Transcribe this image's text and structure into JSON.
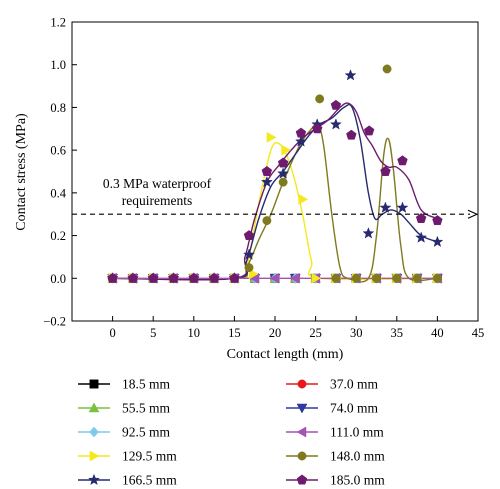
{
  "chart_data": {
    "type": "line",
    "title": "",
    "xlabel": "Contact length (mm)",
    "ylabel": "Contact stress (MPa)",
    "xlim": [
      -5,
      45
    ],
    "ylim": [
      -0.2,
      1.2
    ],
    "xticks": [
      "0",
      "5",
      "10",
      "15",
      "20",
      "25",
      "30",
      "35",
      "40",
      "45"
    ],
    "yticks": [
      "−0.2",
      "0.0",
      "0.2",
      "0.4",
      "0.6",
      "0.8",
      "1.0",
      "1.2"
    ],
    "grid": false,
    "legend_position": "bottom",
    "reference_line": {
      "y": 0.3,
      "label_line1": "0.3 MPa waterproof",
      "label_line2": "requirements",
      "color": "#000000"
    },
    "series": [
      {
        "name": "18.5 mm",
        "color": "#000000",
        "marker": "square",
        "points": [
          [
            0,
            0
          ],
          [
            2.5,
            0
          ],
          [
            5,
            0
          ],
          [
            7.5,
            0
          ],
          [
            10,
            0
          ],
          [
            12.5,
            0
          ],
          [
            15,
            0
          ],
          [
            17.5,
            0
          ],
          [
            20,
            0
          ],
          [
            22.5,
            0
          ],
          [
            25,
            0
          ],
          [
            27.5,
            0
          ],
          [
            30,
            0
          ],
          [
            32.5,
            0
          ],
          [
            35,
            0
          ],
          [
            37.5,
            0
          ],
          [
            40,
            0
          ]
        ]
      },
      {
        "name": "37.0 mm",
        "color": "#e8191c",
        "marker": "circle",
        "points": [
          [
            0,
            0
          ],
          [
            2.5,
            0
          ],
          [
            5,
            0
          ],
          [
            7.5,
            0
          ],
          [
            10,
            0
          ],
          [
            12.5,
            0
          ],
          [
            15,
            0
          ],
          [
            17.5,
            0
          ],
          [
            20,
            0
          ],
          [
            22.5,
            0
          ],
          [
            25,
            0
          ],
          [
            27.5,
            0
          ],
          [
            30,
            0
          ],
          [
            32.5,
            0
          ],
          [
            35,
            0
          ],
          [
            37.5,
            0
          ],
          [
            40,
            0
          ]
        ]
      },
      {
        "name": "55.5 mm",
        "color": "#7ac142",
        "marker": "triangle-up",
        "points": [
          [
            0,
            0
          ],
          [
            2.5,
            0
          ],
          [
            5,
            0
          ],
          [
            7.5,
            0
          ],
          [
            10,
            0
          ],
          [
            12.5,
            0
          ],
          [
            15,
            0
          ],
          [
            17.5,
            0
          ],
          [
            20,
            0
          ],
          [
            22.5,
            0
          ],
          [
            25,
            0
          ],
          [
            27.5,
            0
          ],
          [
            30,
            0
          ],
          [
            32.5,
            0
          ],
          [
            35,
            0
          ],
          [
            37.5,
            0
          ],
          [
            40,
            0
          ]
        ]
      },
      {
        "name": "74.0 mm",
        "color": "#2e3a9e",
        "marker": "triangle-down",
        "points": [
          [
            0,
            0
          ],
          [
            2.5,
            0
          ],
          [
            5,
            0
          ],
          [
            7.5,
            0
          ],
          [
            10,
            0
          ],
          [
            12.5,
            0
          ],
          [
            15,
            0
          ],
          [
            17.5,
            0
          ],
          [
            20,
            0
          ],
          [
            22.5,
            0
          ],
          [
            25,
            0
          ],
          [
            27.5,
            0
          ],
          [
            30,
            0
          ],
          [
            32.5,
            0
          ],
          [
            35,
            0
          ],
          [
            37.5,
            0
          ],
          [
            40,
            0
          ]
        ]
      },
      {
        "name": "92.5 mm",
        "color": "#7fc8ee",
        "marker": "diamond",
        "points": [
          [
            0,
            0
          ],
          [
            2.5,
            0
          ],
          [
            5,
            0
          ],
          [
            7.5,
            0
          ],
          [
            10,
            0
          ],
          [
            12.5,
            0
          ],
          [
            15,
            0
          ],
          [
            17.5,
            0
          ],
          [
            20,
            0
          ],
          [
            22.5,
            0
          ],
          [
            25,
            0
          ],
          [
            27.5,
            0
          ],
          [
            30,
            0
          ],
          [
            32.5,
            0
          ],
          [
            35,
            0
          ],
          [
            37.5,
            0
          ],
          [
            40,
            0
          ]
        ]
      },
      {
        "name": "111.0 mm",
        "color": "#a453b5",
        "marker": "triangle-left",
        "points": [
          [
            0,
            0
          ],
          [
            2.5,
            0
          ],
          [
            5,
            0
          ],
          [
            7.5,
            0
          ],
          [
            10,
            0
          ],
          [
            12.5,
            0
          ],
          [
            15,
            0
          ],
          [
            17.5,
            0
          ],
          [
            20,
            0
          ],
          [
            22.5,
            0
          ],
          [
            25,
            0
          ],
          [
            27.5,
            0
          ],
          [
            30,
            0
          ],
          [
            32.5,
            0
          ],
          [
            35,
            0
          ],
          [
            37.5,
            0
          ],
          [
            40,
            0
          ]
        ]
      },
      {
        "name": "129.5 mm",
        "color": "#f5e81c",
        "marker": "triangle-right",
        "points": [
          [
            0,
            0
          ],
          [
            2.5,
            0
          ],
          [
            5,
            0
          ],
          [
            7.5,
            0
          ],
          [
            10,
            0
          ],
          [
            12.5,
            0
          ],
          [
            15,
            0
          ],
          [
            17.3,
            0.02
          ],
          [
            19.5,
            0.66
          ],
          [
            21.3,
            0.6
          ],
          [
            23.4,
            0.37
          ],
          [
            25,
            0
          ],
          [
            27.5,
            0
          ],
          [
            30,
            0
          ],
          [
            32.5,
            0
          ],
          [
            35,
            0
          ],
          [
            37.5,
            0
          ],
          [
            40,
            0
          ]
        ]
      },
      {
        "name": "148.0 mm",
        "color": "#7f7a1d",
        "marker": "circle",
        "points": [
          [
            0,
            0
          ],
          [
            2.5,
            0
          ],
          [
            5,
            0
          ],
          [
            7.5,
            0
          ],
          [
            10,
            0
          ],
          [
            12.5,
            0
          ],
          [
            15,
            0
          ],
          [
            16.8,
            0.05
          ],
          [
            19,
            0.27
          ],
          [
            21,
            0.45
          ],
          [
            25.5,
            0.84
          ],
          [
            27.5,
            0
          ],
          [
            30,
            0
          ],
          [
            32.5,
            0
          ],
          [
            33.8,
            0.98
          ],
          [
            35,
            0
          ],
          [
            37.5,
            0
          ],
          [
            40,
            0
          ]
        ]
      },
      {
        "name": "166.5 mm",
        "color": "#262a6e",
        "marker": "star",
        "points": [
          [
            0,
            0
          ],
          [
            2.5,
            0
          ],
          [
            5,
            0
          ],
          [
            7.5,
            0
          ],
          [
            10,
            0
          ],
          [
            12.5,
            0
          ],
          [
            15,
            0
          ],
          [
            16.8,
            0.11
          ],
          [
            19,
            0.45
          ],
          [
            21,
            0.49
          ],
          [
            23.2,
            0.64
          ],
          [
            25.2,
            0.72
          ],
          [
            27.5,
            0.72
          ],
          [
            29.3,
            0.95
          ],
          [
            31.5,
            0.21
          ],
          [
            33.6,
            0.33
          ],
          [
            35.7,
            0.33
          ],
          [
            38,
            0.19
          ],
          [
            40,
            0.17
          ]
        ]
      },
      {
        "name": "185.0 mm",
        "color": "#6e1b6e",
        "marker": "pentagon",
        "points": [
          [
            0,
            0
          ],
          [
            2.5,
            0
          ],
          [
            5,
            0
          ],
          [
            7.5,
            0
          ],
          [
            10,
            0
          ],
          [
            12.5,
            0
          ],
          [
            15,
            0
          ],
          [
            16.8,
            0.2
          ],
          [
            19,
            0.5
          ],
          [
            21,
            0.54
          ],
          [
            23.2,
            0.68
          ],
          [
            25.2,
            0.7
          ],
          [
            27.5,
            0.81
          ],
          [
            29.4,
            0.67
          ],
          [
            31.6,
            0.69
          ],
          [
            33.6,
            0.5
          ],
          [
            35.7,
            0.55
          ],
          [
            38,
            0.28
          ],
          [
            40,
            0.27
          ]
        ]
      }
    ],
    "curves": [
      {
        "series": "129.5 mm",
        "color": "#f5e81c",
        "points": [
          [
            0,
            0
          ],
          [
            15,
            0
          ],
          [
            16.5,
            0.05
          ],
          [
            18,
            0.35
          ],
          [
            19.5,
            0.6
          ],
          [
            20.5,
            0.63
          ],
          [
            21.5,
            0.57
          ],
          [
            22.5,
            0.45
          ],
          [
            23.5,
            0.28
          ],
          [
            24.5,
            0.08
          ],
          [
            25.5,
            0
          ],
          [
            40,
            0
          ]
        ]
      },
      {
        "series": "148.0 mm",
        "color": "#7f7a1d",
        "points": [
          [
            0,
            0
          ],
          [
            15,
            0
          ],
          [
            16.5,
            0.05
          ],
          [
            18,
            0.18
          ],
          [
            19.5,
            0.3
          ],
          [
            21,
            0.45
          ],
          [
            23,
            0.62
          ],
          [
            24.5,
            0.7
          ],
          [
            25.3,
            0.72
          ],
          [
            26,
            0.62
          ],
          [
            27,
            0.3
          ],
          [
            28,
            0.05
          ],
          [
            29,
            0
          ],
          [
            31.5,
            0
          ],
          [
            32.5,
            0.2
          ],
          [
            33.4,
            0.58
          ],
          [
            34,
            0.65
          ],
          [
            34.6,
            0.5
          ],
          [
            35.5,
            0.15
          ],
          [
            36.5,
            0
          ],
          [
            40,
            0
          ]
        ]
      },
      {
        "series": "166.5 mm",
        "color": "#262a6e",
        "points": [
          [
            0,
            0
          ],
          [
            15,
            0
          ],
          [
            16.5,
            0.08
          ],
          [
            18,
            0.28
          ],
          [
            19.5,
            0.43
          ],
          [
            21,
            0.5
          ],
          [
            22.5,
            0.58
          ],
          [
            24,
            0.66
          ],
          [
            25.5,
            0.72
          ],
          [
            27,
            0.75
          ],
          [
            28.5,
            0.8
          ],
          [
            29.5,
            0.8
          ],
          [
            30.5,
            0.65
          ],
          [
            31.5,
            0.4
          ],
          [
            32.3,
            0.28
          ],
          [
            33.2,
            0.3
          ],
          [
            34.3,
            0.32
          ],
          [
            35.5,
            0.3
          ],
          [
            36.5,
            0.26
          ],
          [
            38,
            0.2
          ],
          [
            40,
            0.17
          ]
        ]
      },
      {
        "series": "185.0 mm",
        "color": "#6e1b6e",
        "points": [
          [
            0,
            0
          ],
          [
            15,
            0
          ],
          [
            16.3,
            0.1
          ],
          [
            17.5,
            0.28
          ],
          [
            19,
            0.45
          ],
          [
            20.5,
            0.53
          ],
          [
            22,
            0.6
          ],
          [
            23.5,
            0.66
          ],
          [
            25,
            0.7
          ],
          [
            26.5,
            0.74
          ],
          [
            28,
            0.8
          ],
          [
            29,
            0.82
          ],
          [
            30,
            0.78
          ],
          [
            31,
            0.68
          ],
          [
            32,
            0.62
          ],
          [
            33,
            0.55
          ],
          [
            34,
            0.52
          ],
          [
            35,
            0.52
          ],
          [
            36.5,
            0.46
          ],
          [
            38,
            0.32
          ],
          [
            40,
            0.28
          ]
        ]
      },
      {
        "series": "flat",
        "color": "#a453b5",
        "points": [
          [
            0,
            0
          ],
          [
            40,
            0
          ]
        ]
      }
    ]
  }
}
